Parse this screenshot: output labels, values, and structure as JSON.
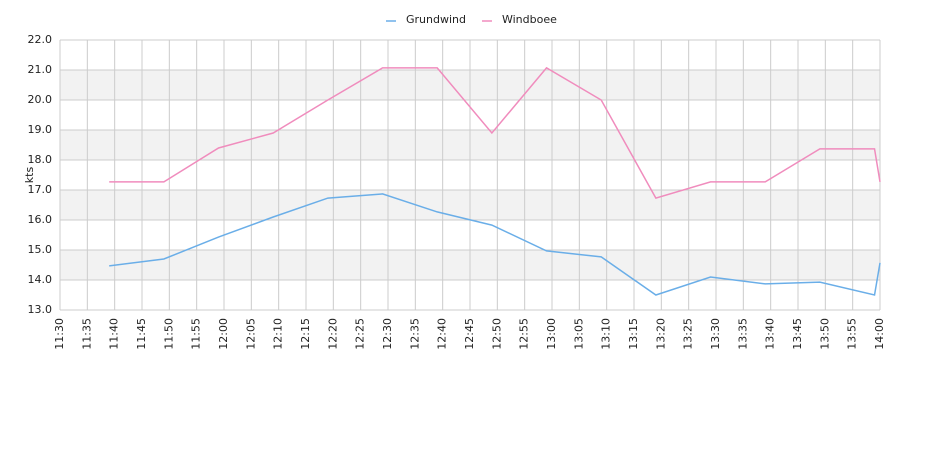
{
  "chart_data": {
    "type": "line",
    "y_label": "kts",
    "x": [
      "11:39",
      "11:49",
      "11:59",
      "12:09",
      "12:19",
      "12:29",
      "12:39",
      "12:49",
      "12:59",
      "13:09",
      "13:19",
      "13:29",
      "13:39",
      "13:49",
      "13:59",
      "14:00"
    ],
    "series": [
      {
        "name": "Grundwind",
        "color": "#6aaee8",
        "values": [
          14.47,
          14.7,
          15.43,
          16.1,
          16.73,
          16.87,
          16.27,
          15.83,
          14.97,
          14.77,
          13.5,
          14.1,
          13.87,
          13.93,
          13.5,
          14.57
        ]
      },
      {
        "name": "Windboee",
        "color": "#f08cbd",
        "values": [
          17.27,
          17.27,
          18.4,
          18.9,
          20.0,
          21.07,
          21.07,
          18.9,
          21.07,
          20.0,
          16.73,
          17.27,
          17.27,
          18.37,
          18.37,
          17.27
        ]
      }
    ],
    "xlim": [
      "11:30",
      "14:00"
    ],
    "xticks": [
      "11:30",
      "11:35",
      "11:40",
      "11:45",
      "11:50",
      "11:55",
      "12:00",
      "12:05",
      "12:10",
      "12:15",
      "12:20",
      "12:25",
      "12:30",
      "12:35",
      "12:40",
      "12:45",
      "12:50",
      "12:55",
      "13:00",
      "13:05",
      "13:10",
      "13:15",
      "13:20",
      "13:25",
      "13:30",
      "13:35",
      "13:40",
      "13:45",
      "13:50",
      "13:55",
      "14:00"
    ],
    "ylim": [
      13,
      22
    ],
    "yticks": [
      {
        "value": 13,
        "label": "13.0"
      },
      {
        "value": 14,
        "label": "14.0"
      },
      {
        "value": 15,
        "label": "15.0"
      },
      {
        "value": 16,
        "label": "16.0"
      },
      {
        "value": 17,
        "label": "17.0"
      },
      {
        "value": 18,
        "label": "18.0"
      },
      {
        "value": 19,
        "label": "19.0"
      },
      {
        "value": 20,
        "label": "20.0"
      },
      {
        "value": 21,
        "label": "21.0"
      },
      {
        "value": 22,
        "label": "22.0"
      }
    ],
    "grid": true,
    "legend": "top"
  }
}
